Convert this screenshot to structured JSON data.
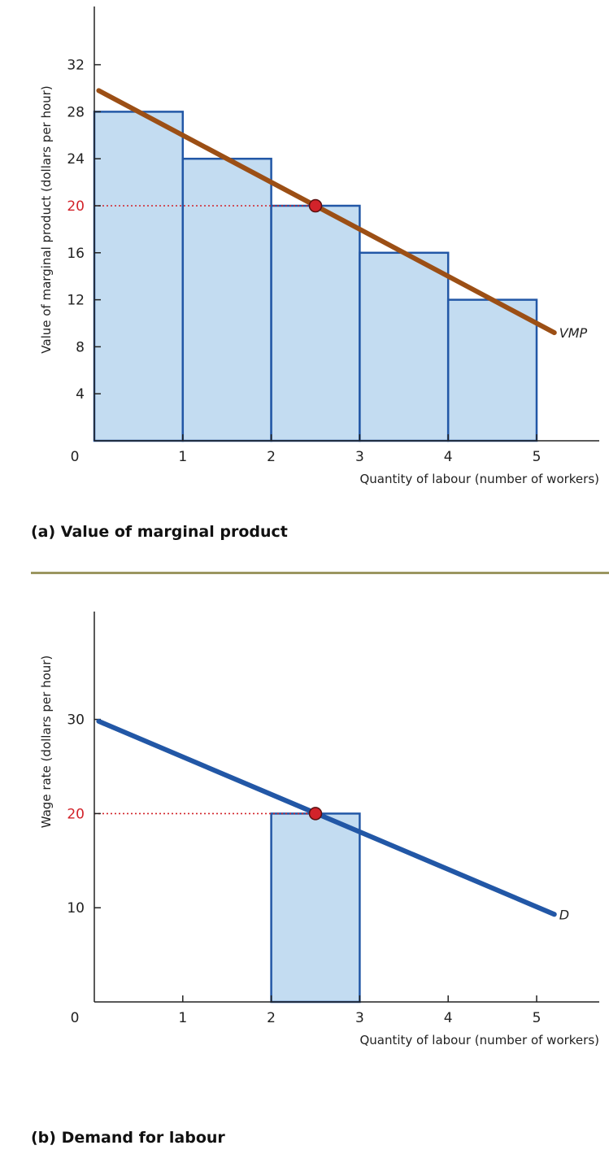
{
  "chart_data": [
    {
      "panel": "a",
      "type": "bar",
      "title": "(a) Value of marginal product",
      "xlabel": "Quantity of labour (number of workers)",
      "ylabel": "Value of marginal product (dollars per hour)",
      "origin_label": "0",
      "xlim": [
        0,
        5.7
      ],
      "ylim": [
        0,
        36
      ],
      "x_ticks": [
        1,
        2,
        3,
        4,
        5
      ],
      "y_ticks": [
        4,
        8,
        12,
        16,
        20,
        24,
        28,
        32
      ],
      "highlight_tick": 20,
      "bars": [
        {
          "x0": 0,
          "x1": 1,
          "value": 28
        },
        {
          "x0": 1,
          "x1": 2,
          "value": 24
        },
        {
          "x0": 2,
          "x1": 3,
          "value": 20
        },
        {
          "x0": 3,
          "x1": 4,
          "value": 16
        },
        {
          "x0": 4,
          "x1": 5,
          "value": 12
        }
      ],
      "line": {
        "name": "VMP",
        "points": [
          [
            0.05,
            29.8
          ],
          [
            5.2,
            9.2
          ]
        ],
        "color": "#9c4f15"
      },
      "point": {
        "x": 2.5,
        "y": 20
      },
      "guide_y": 20,
      "colors": {
        "bar_fill": "#c3dcf1",
        "bar_stroke": "#2257a6",
        "point": "#d2232a",
        "guide": "#d2232a",
        "axis": "#222222"
      }
    },
    {
      "panel": "b",
      "type": "line",
      "title": "(b) Demand for labour",
      "xlabel": "Quantity of labour (number of workers)",
      "ylabel": "Wage rate (dollars per hour)",
      "origin_label": "0",
      "xlim": [
        0,
        5.7
      ],
      "ylim": [
        0,
        36
      ],
      "x_ticks": [
        1,
        2,
        3,
        4,
        5
      ],
      "y_ticks": [
        10,
        20,
        30
      ],
      "highlight_tick": 20,
      "bars": [
        {
          "x0": 2,
          "x1": 3,
          "value": 20
        }
      ],
      "line": {
        "name": "D",
        "points": [
          [
            0.05,
            29.8
          ],
          [
            5.2,
            9.3
          ]
        ],
        "color": "#2257a6"
      },
      "point": {
        "x": 2.5,
        "y": 20
      },
      "guide_y": 20,
      "colors": {
        "bar_fill": "#c3dcf1",
        "bar_stroke": "#2257a6",
        "point": "#d2232a",
        "guide": "#d2232a",
        "axis": "#222222"
      }
    }
  ]
}
